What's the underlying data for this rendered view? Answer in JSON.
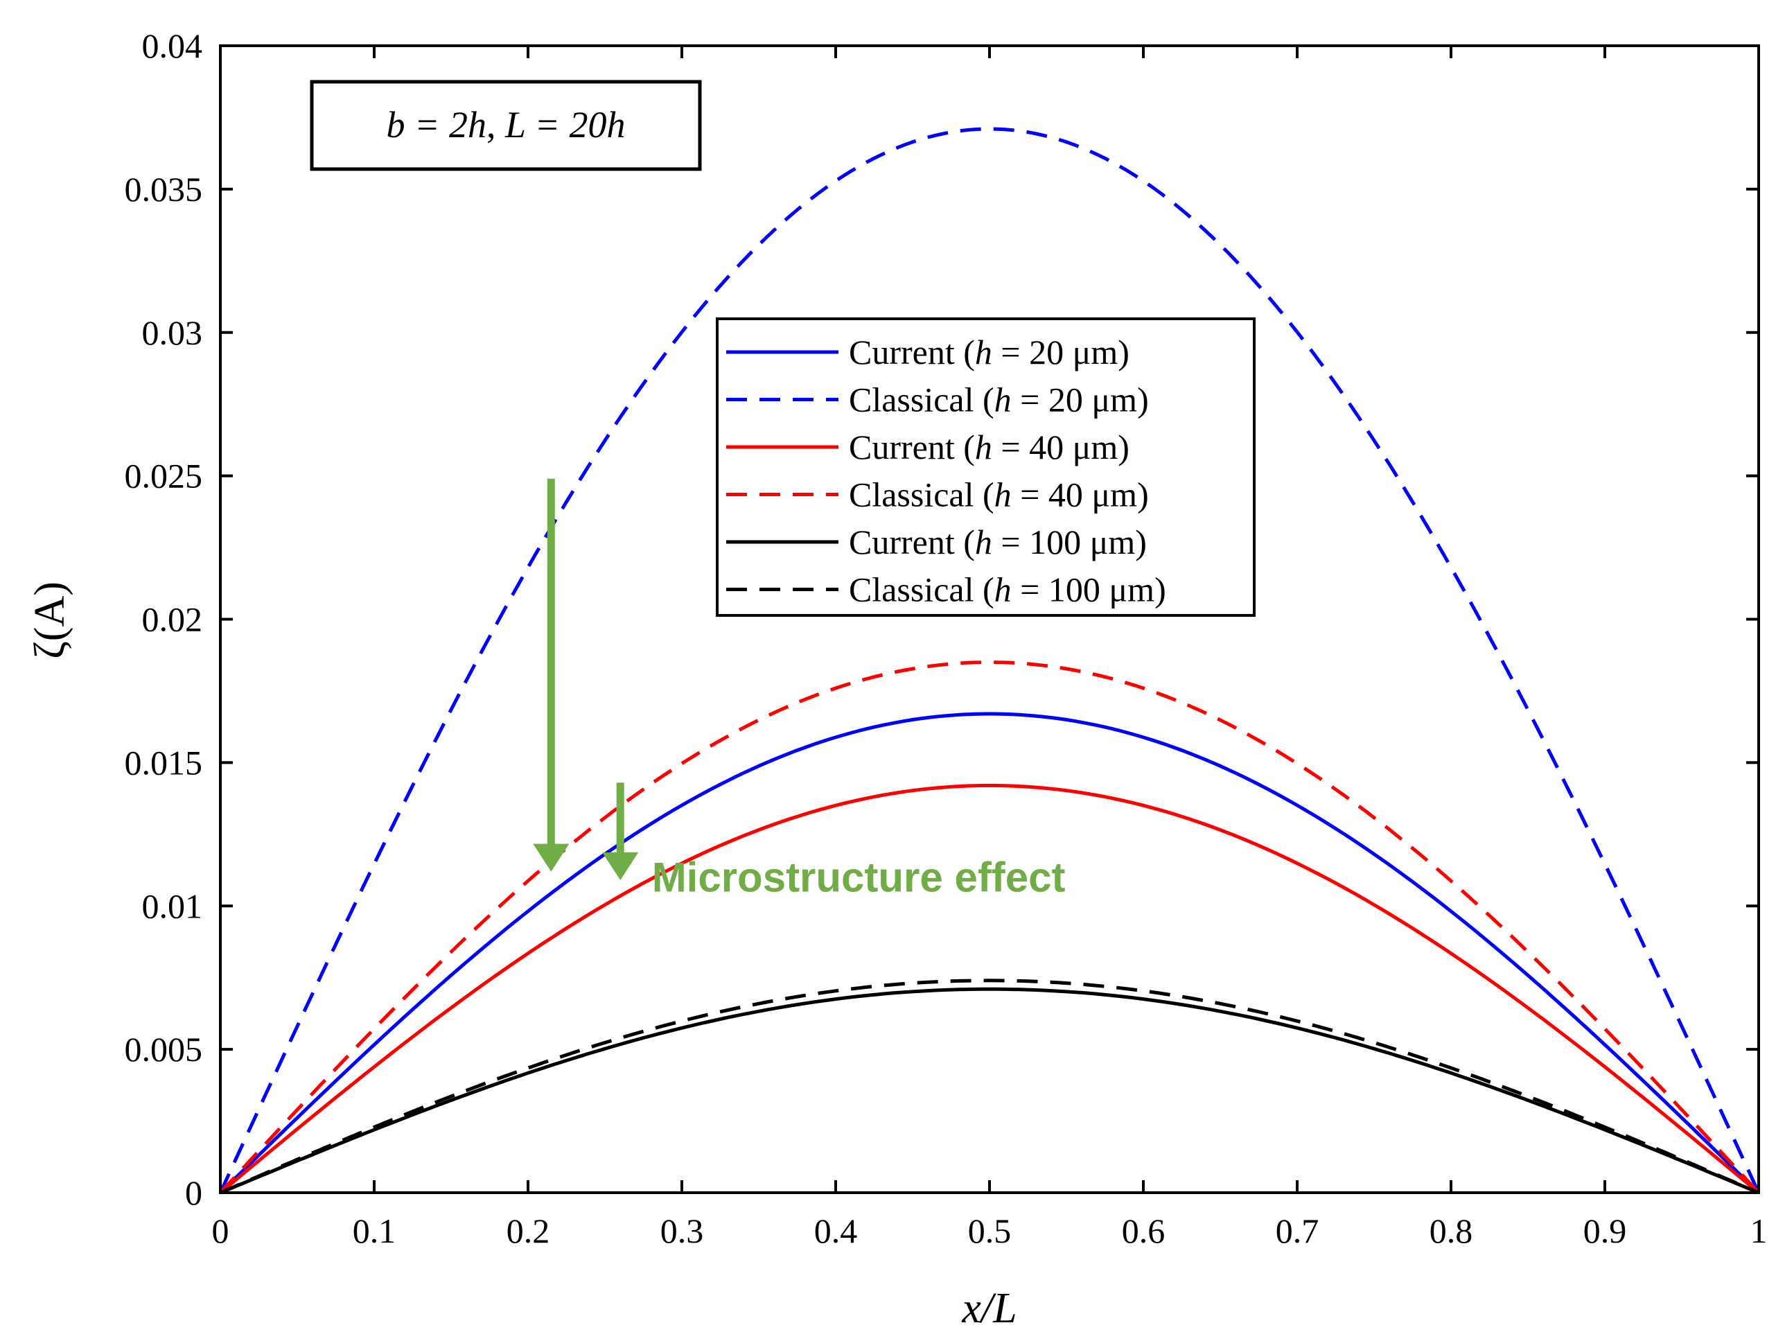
{
  "chart_data": {
    "type": "line",
    "xlabel": "x/L",
    "ylabel": "ζ(A)",
    "xlim": [
      0,
      1
    ],
    "ylim": [
      0,
      0.04
    ],
    "grid": false,
    "x_ticks": [
      "0",
      "0.1",
      "0.2",
      "0.3",
      "0.4",
      "0.5",
      "0.6",
      "0.7",
      "0.8",
      "0.9",
      "1"
    ],
    "y_ticks": [
      "0",
      "0.005",
      "0.01",
      "0.015",
      "0.02",
      "0.025",
      "0.03",
      "0.035",
      "0.04"
    ],
    "legend_position": "center",
    "x": [
      0,
      0.1,
      0.2,
      0.3,
      0.4,
      0.5,
      0.6,
      0.7,
      0.8,
      0.9,
      1
    ],
    "series": [
      {
        "name": "Current (h = 20 μm)",
        "h": "20 μm",
        "kind": "Current",
        "color": "#0000ff",
        "style": "solid",
        "peak": 0.0167,
        "values": [
          0,
          0.00516,
          0.00982,
          0.01351,
          0.01588,
          0.0167,
          0.01588,
          0.01351,
          0.00982,
          0.00516,
          0
        ]
      },
      {
        "name": "Classical (h = 20 μm)",
        "h": "20 μm",
        "kind": "Classical",
        "color": "#0000ff",
        "style": "dashed",
        "peak": 0.0371,
        "values": [
          0,
          0.01146,
          0.0218,
          0.03001,
          0.03528,
          0.0371,
          0.03528,
          0.03001,
          0.0218,
          0.01146,
          0
        ]
      },
      {
        "name": "Current (h = 40 μm)",
        "h": "40 μm",
        "kind": "Current",
        "color": "#ff0000",
        "style": "solid",
        "peak": 0.0142,
        "values": [
          0,
          0.00439,
          0.00835,
          0.01149,
          0.0135,
          0.0142,
          0.0135,
          0.01149,
          0.00835,
          0.00439,
          0
        ]
      },
      {
        "name": "Classical (h = 40 μm)",
        "h": "40 μm",
        "kind": "Classical",
        "color": "#ff0000",
        "style": "dashed",
        "peak": 0.0185,
        "values": [
          0,
          0.00572,
          0.01087,
          0.01497,
          0.01759,
          0.0185,
          0.01759,
          0.01497,
          0.01087,
          0.00572,
          0
        ]
      },
      {
        "name": "Current (h = 100 μm)",
        "h": "100 μm",
        "kind": "Current",
        "color": "#000000",
        "style": "solid",
        "peak": 0.0071,
        "values": [
          0,
          0.00219,
          0.00417,
          0.00574,
          0.00675,
          0.0071,
          0.00675,
          0.00574,
          0.00417,
          0.00219,
          0
        ]
      },
      {
        "name": "Classical (h = 100 μm)",
        "h": "100 μm",
        "kind": "Classical",
        "color": "#000000",
        "style": "dashed",
        "peak": 0.0074,
        "values": [
          0,
          0.00229,
          0.00435,
          0.00599,
          0.00704,
          0.0074,
          0.00704,
          0.00599,
          0.00435,
          0.00229,
          0
        ]
      }
    ],
    "inset_label": {
      "b_part": "b = 2h",
      "L_part": "L = 20h"
    },
    "annotation": {
      "text": "Microstructure effect",
      "color": "#70ad47",
      "arrows": [
        {
          "x": 0.215,
          "from": 0.0249,
          "to": 0.0112
        },
        {
          "x": 0.26,
          "from": 0.0143,
          "to": 0.0109
        }
      ],
      "text_anchor": {
        "x": 0.285,
        "y": 0.0105
      }
    }
  }
}
